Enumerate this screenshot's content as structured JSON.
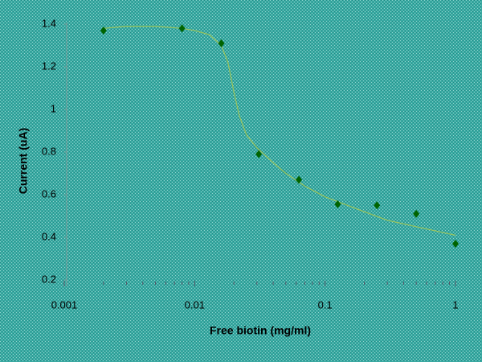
{
  "chart_data": {
    "type": "scatter",
    "x_label": "Free biotin (mg/ml)",
    "y_label": "Current (uA)",
    "x_scale": "log",
    "xlim": [
      0.001,
      1
    ],
    "xticks": [
      0.001,
      0.01,
      0.1,
      1
    ],
    "xminorticks": [
      0.002,
      0.003,
      0.004,
      0.005,
      0.006,
      0.007,
      0.008,
      0.009,
      0.02,
      0.03,
      0.04,
      0.05,
      0.06,
      0.07,
      0.08,
      0.09,
      0.2,
      0.3,
      0.4,
      0.5,
      0.6,
      0.7,
      0.8,
      0.9
    ],
    "ylim": [
      0.2,
      1.4
    ],
    "yticks": [
      0.2,
      0.4,
      0.6,
      0.8,
      1,
      1.2,
      1.4
    ],
    "series": [
      {
        "color": "#006400",
        "marker": "diamond",
        "x": [
          0.002,
          0.008,
          0.016,
          0.031,
          0.063,
          0.125,
          0.25,
          0.5,
          1
        ],
        "values": [
          1.37,
          1.38,
          1.31,
          0.79,
          0.67,
          0.555,
          0.55,
          0.51,
          0.37
        ]
      }
    ],
    "fit_line": {
      "color": "#9cc45a",
      "x": [
        0.002,
        0.003,
        0.005,
        0.008,
        0.01,
        0.013,
        0.016,
        0.018,
        0.02,
        0.022,
        0.025,
        0.03,
        0.04,
        0.05,
        0.07,
        0.1,
        0.2,
        0.3,
        0.5,
        1
      ],
      "values": [
        1.38,
        1.39,
        1.39,
        1.38,
        1.37,
        1.35,
        1.3,
        1.22,
        1.08,
        0.97,
        0.88,
        0.82,
        0.75,
        0.7,
        0.64,
        0.59,
        0.52,
        0.48,
        0.45,
        0.41
      ]
    }
  }
}
